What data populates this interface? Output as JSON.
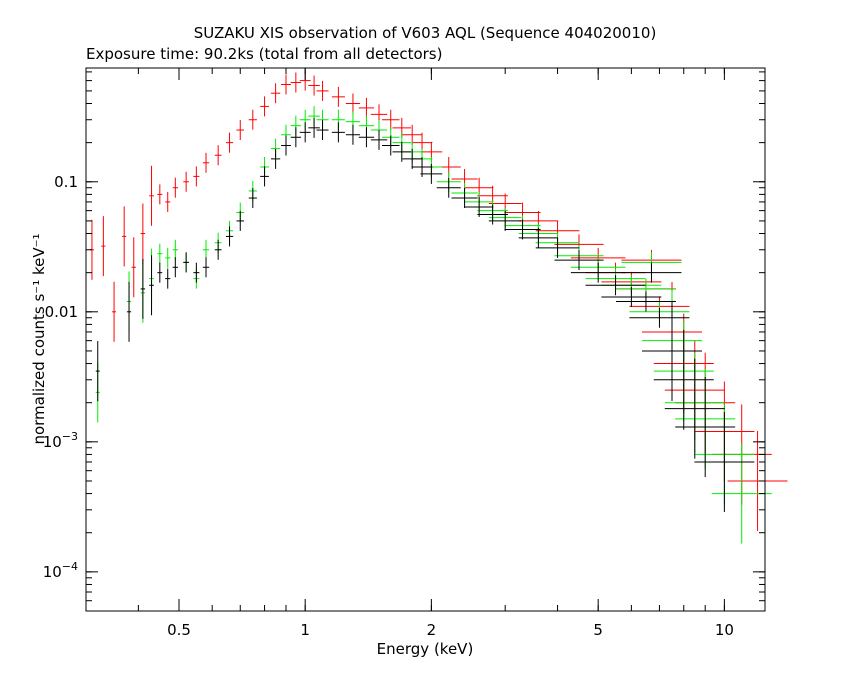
{
  "chart_data": {
    "type": "scatter",
    "title": "SUZAKU XIS observation of V603 AQL (Sequence 404020010)",
    "subtitle": "Exposure time: 90.2ks (total from all detectors)",
    "xlabel": "Energy (keV)",
    "ylabel": "normalized counts s⁻¹ keV⁻¹",
    "x_scale": "log",
    "y_scale": "log",
    "xlim": [
      0.3,
      12.5
    ],
    "ylim": [
      5e-05,
      0.75
    ],
    "x_ticks": [
      {
        "value": 0.5,
        "label": "0.5"
      },
      {
        "value": 1,
        "label": "1"
      },
      {
        "value": 2,
        "label": "2"
      },
      {
        "value": 5,
        "label": "5"
      },
      {
        "value": 10,
        "label": "10"
      }
    ],
    "y_ticks": [
      {
        "value": 0.1,
        "base": "0.1",
        "exp": ""
      },
      {
        "value": 0.01,
        "base": "0.01",
        "exp": ""
      },
      {
        "value": 0.001,
        "base": "10",
        "exp": "−3"
      },
      {
        "value": 0.0001,
        "base": "10",
        "exp": "−4"
      }
    ],
    "legend": "none",
    "series": [
      {
        "color": "#ff0000",
        "points": [
          [
            0.31,
            0.03
          ],
          [
            0.33,
            0.032
          ],
          [
            0.35,
            0.01
          ],
          [
            0.37,
            0.038
          ],
          [
            0.39,
            0.022
          ],
          [
            0.41,
            0.04
          ],
          [
            0.43,
            0.078
          ],
          [
            0.45,
            0.08
          ],
          [
            0.47,
            0.07
          ],
          [
            0.49,
            0.09
          ],
          [
            0.52,
            0.1
          ],
          [
            0.55,
            0.11
          ],
          [
            0.58,
            0.14
          ],
          [
            0.62,
            0.16
          ],
          [
            0.66,
            0.2
          ],
          [
            0.7,
            0.25
          ],
          [
            0.75,
            0.3
          ],
          [
            0.8,
            0.38
          ],
          [
            0.85,
            0.48
          ],
          [
            0.9,
            0.56
          ],
          [
            0.95,
            0.58
          ],
          [
            1.0,
            0.6
          ],
          [
            1.05,
            0.55
          ],
          [
            1.1,
            0.5
          ],
          [
            1.2,
            0.45
          ],
          [
            1.3,
            0.4
          ],
          [
            1.4,
            0.37
          ],
          [
            1.5,
            0.33
          ],
          [
            1.6,
            0.3
          ],
          [
            1.7,
            0.26
          ],
          [
            1.8,
            0.23
          ],
          [
            1.9,
            0.2
          ],
          [
            2.0,
            0.17
          ],
          [
            2.2,
            0.13
          ],
          [
            2.4,
            0.105
          ],
          [
            2.6,
            0.09
          ],
          [
            2.8,
            0.078
          ],
          [
            3.0,
            0.068
          ],
          [
            3.3,
            0.058
          ],
          [
            3.6,
            0.05
          ],
          [
            4.0,
            0.042
          ],
          [
            4.5,
            0.033
          ],
          [
            5.0,
            0.026
          ],
          [
            5.5,
            0.02
          ],
          [
            6.0,
            0.017
          ],
          [
            6.5,
            0.015
          ],
          [
            6.7,
            0.025
          ],
          [
            7.0,
            0.011
          ],
          [
            7.5,
            0.007
          ],
          [
            8.0,
            0.004
          ],
          [
            8.5,
            0.0025
          ],
          [
            9.0,
            0.002
          ],
          [
            10.0,
            0.0012
          ],
          [
            11.0,
            0.0008
          ],
          [
            12.0,
            0.0005
          ]
        ]
      },
      {
        "color": "#00ee00",
        "points": [
          [
            0.32,
            0.0024
          ],
          [
            0.38,
            0.012
          ],
          [
            0.41,
            0.014
          ],
          [
            0.43,
            0.018
          ],
          [
            0.45,
            0.028
          ],
          [
            0.47,
            0.026
          ],
          [
            0.49,
            0.03
          ],
          [
            0.52,
            0.024
          ],
          [
            0.55,
            0.018
          ],
          [
            0.58,
            0.03
          ],
          [
            0.62,
            0.034
          ],
          [
            0.66,
            0.042
          ],
          [
            0.7,
            0.058
          ],
          [
            0.75,
            0.085
          ],
          [
            0.8,
            0.13
          ],
          [
            0.85,
            0.18
          ],
          [
            0.9,
            0.23
          ],
          [
            0.95,
            0.27
          ],
          [
            1.0,
            0.3
          ],
          [
            1.05,
            0.32
          ],
          [
            1.1,
            0.3
          ],
          [
            1.2,
            0.3
          ],
          [
            1.3,
            0.29
          ],
          [
            1.4,
            0.27
          ],
          [
            1.5,
            0.25
          ],
          [
            1.6,
            0.22
          ],
          [
            1.7,
            0.2
          ],
          [
            1.8,
            0.17
          ],
          [
            1.9,
            0.15
          ],
          [
            2.0,
            0.13
          ],
          [
            2.2,
            0.1
          ],
          [
            2.4,
            0.082
          ],
          [
            2.6,
            0.07
          ],
          [
            2.8,
            0.06
          ],
          [
            3.0,
            0.053
          ],
          [
            3.3,
            0.046
          ],
          [
            3.6,
            0.04
          ],
          [
            4.0,
            0.034
          ],
          [
            4.5,
            0.027
          ],
          [
            5.0,
            0.022
          ],
          [
            5.5,
            0.018
          ],
          [
            6.0,
            0.016
          ],
          [
            6.5,
            0.015
          ],
          [
            6.7,
            0.024
          ],
          [
            7.0,
            0.01
          ],
          [
            7.5,
            0.006
          ],
          [
            8.0,
            0.0035
          ],
          [
            8.5,
            0.002
          ],
          [
            9.0,
            0.0015
          ],
          [
            10.0,
            0.0008
          ],
          [
            11.0,
            0.0004
          ]
        ]
      },
      {
        "color": "#000000",
        "points": [
          [
            0.32,
            0.0035
          ],
          [
            0.38,
            0.01
          ],
          [
            0.41,
            0.015
          ],
          [
            0.43,
            0.016
          ],
          [
            0.45,
            0.02
          ],
          [
            0.47,
            0.018
          ],
          [
            0.49,
            0.022
          ],
          [
            0.52,
            0.024
          ],
          [
            0.55,
            0.02
          ],
          [
            0.58,
            0.022
          ],
          [
            0.62,
            0.03
          ],
          [
            0.66,
            0.038
          ],
          [
            0.7,
            0.05
          ],
          [
            0.75,
            0.075
          ],
          [
            0.8,
            0.11
          ],
          [
            0.85,
            0.15
          ],
          [
            0.9,
            0.19
          ],
          [
            0.95,
            0.22
          ],
          [
            1.0,
            0.24
          ],
          [
            1.05,
            0.26
          ],
          [
            1.1,
            0.25
          ],
          [
            1.2,
            0.24
          ],
          [
            1.3,
            0.23
          ],
          [
            1.4,
            0.22
          ],
          [
            1.5,
            0.21
          ],
          [
            1.6,
            0.19
          ],
          [
            1.7,
            0.17
          ],
          [
            1.8,
            0.15
          ],
          [
            1.9,
            0.13
          ],
          [
            2.0,
            0.115
          ],
          [
            2.2,
            0.09
          ],
          [
            2.4,
            0.075
          ],
          [
            2.6,
            0.064
          ],
          [
            2.8,
            0.056
          ],
          [
            3.0,
            0.05
          ],
          [
            3.3,
            0.043
          ],
          [
            3.6,
            0.037
          ],
          [
            4.0,
            0.031
          ],
          [
            4.5,
            0.025
          ],
          [
            5.0,
            0.02
          ],
          [
            5.5,
            0.016
          ],
          [
            6.0,
            0.013
          ],
          [
            6.5,
            0.012
          ],
          [
            6.7,
            0.02
          ],
          [
            7.0,
            0.009
          ],
          [
            7.5,
            0.005
          ],
          [
            8.0,
            0.003
          ],
          [
            8.5,
            0.0018
          ],
          [
            9.0,
            0.0013
          ],
          [
            10.0,
            0.0007
          ]
        ]
      }
    ]
  }
}
